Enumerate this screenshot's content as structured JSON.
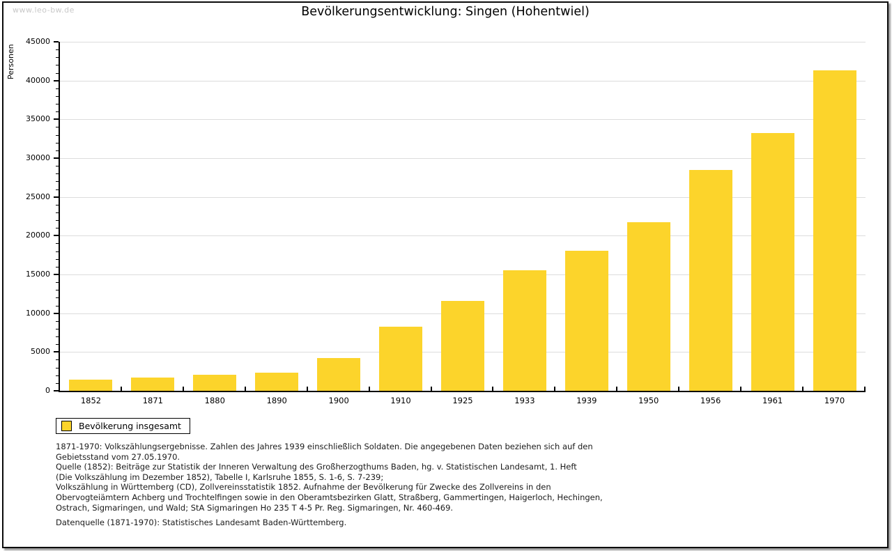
{
  "page": {
    "watermark": "www.leo-bw.de"
  },
  "chart_data": {
    "type": "bar",
    "title": "Bevölkerungsentwicklung: Singen (Hohentwiel)",
    "xlabel": "",
    "ylabel": "Personen",
    "ylim": [
      0,
      45000
    ],
    "y_major_step": 5000,
    "y_minor_step": 1000,
    "grid": true,
    "legend_position": "bottom-left",
    "bar_color": "#FCD42B",
    "categories": [
      "1852",
      "1871",
      "1880",
      "1890",
      "1900",
      "1910",
      "1925",
      "1933",
      "1939",
      "1950",
      "1956",
      "1961",
      "1970"
    ],
    "series": [
      {
        "name": "Bevölkerung insgesamt",
        "values": [
          1450,
          1750,
          2050,
          2300,
          4200,
          8300,
          11600,
          15500,
          18050,
          21700,
          28450,
          33250,
          41300
        ]
      }
    ]
  },
  "legend": {
    "label": "Bevölkerung insgesamt",
    "swatch_color": "#FCD42B"
  },
  "notes": {
    "lines": [
      "1871-1970: Volkszählungsergebnisse. Zahlen des Jahres 1939 einschließlich Soldaten. Die angegebenen Daten beziehen sich auf den",
      "Gebietsstand vom 27.05.1970.",
      "Quelle (1852): Beiträge zur Statistik der Inneren Verwaltung des Großherzogthums Baden, hg. v. Statistischen Landesamt, 1. Heft",
      "(Die Volkszählung im Dezember 1852), Tabelle I, Karlsruhe 1855, S. 1-6, S. 7-239;",
      "Volkszählung in Württemberg (CD), Zollvereinsstatistik 1852. Aufnahme der Bevölkerung für Zwecke des Zollvereins in den",
      "Obervogteiämtern Achberg und Trochtelfingen sowie in den Oberamtsbezirken Glatt, Straßberg, Gammertingen, Haigerloch, Hechingen,",
      "Ostrach, Sigmaringen, und Wald; StA Sigmaringen Ho 235 T 4-5 Pr. Reg. Sigmaringen, Nr. 460-469."
    ],
    "datasource": "Datenquelle (1871-1970): Statistisches Landesamt Baden-Württemberg."
  }
}
